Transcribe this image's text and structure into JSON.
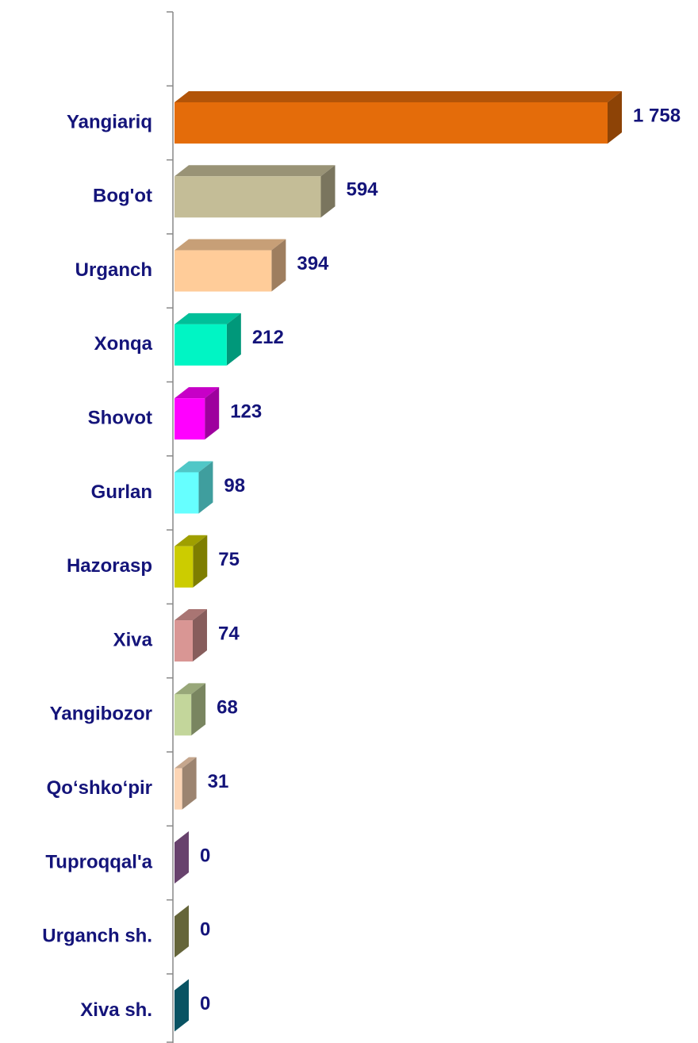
{
  "chart_data": {
    "type": "bar",
    "orientation": "horizontal",
    "categories": [
      "Yangiariq",
      "Bog'ot",
      "Urganch",
      "Xonqa",
      "Shovot",
      "Gurlan",
      "Hazorasp",
      "Xiva",
      "Yangibozor",
      "Qo‘shko‘pir",
      "Tuproqqal'a",
      "Urganch sh.",
      "Xiva sh."
    ],
    "values": [
      1758,
      594,
      394,
      212,
      123,
      98,
      75,
      74,
      68,
      31,
      0,
      0,
      0
    ],
    "value_labels": [
      "1 758",
      "594",
      "394",
      "212",
      "123",
      "98",
      "75",
      "74",
      "68",
      "31",
      "0",
      "0",
      "0"
    ],
    "colors": [
      "#e46c0a",
      "#c4bd97",
      "#ffcc99",
      "#00f5c4",
      "#ff00ff",
      "#66ffff",
      "#cccc00",
      "#d99694",
      "#c3d69b",
      "#fcd5b5",
      "#a86bb0",
      "#a3a35e",
      "#0e86a0"
    ]
  }
}
